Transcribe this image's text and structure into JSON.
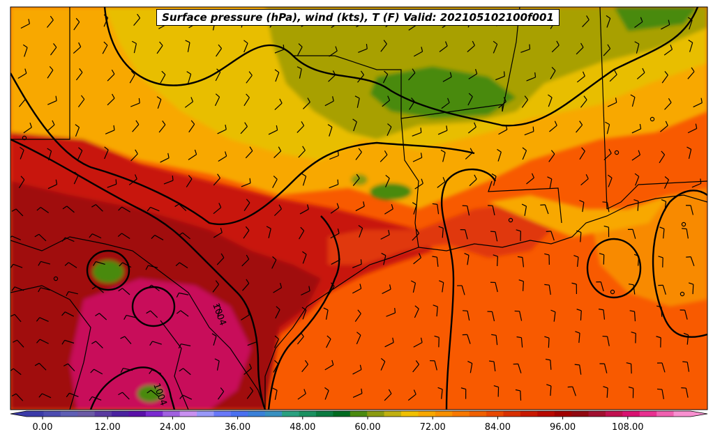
{
  "title": "Surface pressure (hPa), wind (kts), T (F) Valid: 202105102100f001",
  "contour_labels": [
    "1004",
    "1004"
  ],
  "colorbar": {
    "tick_labels": [
      "0.00",
      "12.00",
      "24.00",
      "36.00",
      "48.00",
      "60.00",
      "72.00",
      "84.00",
      "96.00",
      "108.00"
    ],
    "colors": [
      "#3a3aa8",
      "#4c4cb0",
      "#5e5eb4",
      "#6a5aa6",
      "#5a3aa0",
      "#4a22a0",
      "#5a10a8",
      "#7a2ad0",
      "#a060e0",
      "#c890f0",
      "#9898f8",
      "#6878f8",
      "#4a70f0",
      "#3a80d8",
      "#3890c0",
      "#2aa080",
      "#1a9060",
      "#0a7a40",
      "#006a20",
      "#4a8a10",
      "#8a9a10",
      "#c0b010",
      "#f0c000",
      "#f8a800",
      "#f89000",
      "#f87800",
      "#f06000",
      "#e84800",
      "#d83000",
      "#c81800",
      "#b80800",
      "#a00000",
      "#900810",
      "#a01030",
      "#c01050",
      "#d81070",
      "#e83090",
      "#f060b0",
      "#f890d0"
    ]
  },
  "map_colors": {
    "hot_magenta": "#c8085a",
    "deep_red": "#a00808",
    "red": "#c81408",
    "red_orange": "#e03808",
    "orange": "#f85a00",
    "light_orange": "#fa8a00",
    "amber": "#f8a800",
    "gold": "#e8be00",
    "olive": "#a8a000",
    "green": "#4a8a10"
  }
}
